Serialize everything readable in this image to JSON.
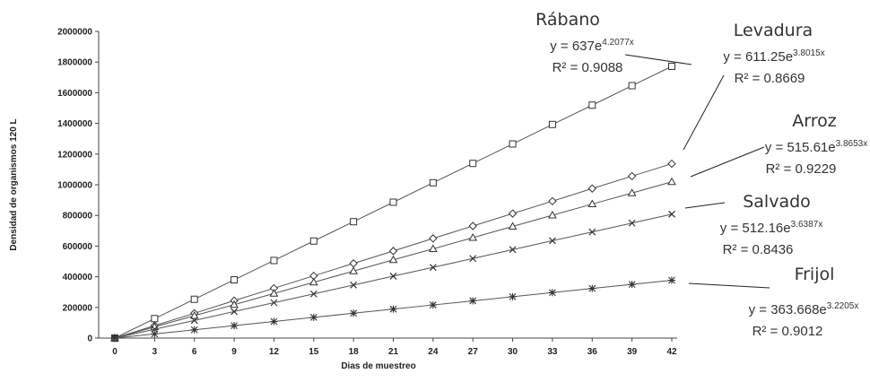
{
  "chart_data": {
    "type": "line",
    "title": "",
    "xlabel": "Dias de muestreo",
    "ylabel": "Densidad de organismos 120 L",
    "x": [
      0,
      3,
      6,
      9,
      12,
      15,
      18,
      21,
      24,
      27,
      30,
      33,
      36,
      39,
      42
    ],
    "xlim": [
      0,
      42
    ],
    "ylim": [
      0,
      2000000
    ],
    "yticks": [
      "0",
      "200000",
      "400000",
      "600000",
      "800000",
      "1000000",
      "1200000",
      "1400000",
      "1600000",
      "1800000",
      "2000000"
    ],
    "xticks": [
      "0",
      "3",
      "6",
      "9",
      "12",
      "15",
      "18",
      "21",
      "24",
      "27",
      "30",
      "33",
      "36",
      "39",
      "42"
    ],
    "grid": false,
    "legend": "none",
    "series": [
      {
        "name": "Rábano",
        "marker": "square",
        "values": [
          0,
          127000,
          253000,
          380000,
          506000,
          633000,
          759000,
          886000,
          1013000,
          1139000,
          1266000,
          1393000,
          1519000,
          1646000,
          1772000
        ],
        "equation": {
          "prefix": "y = 637e",
          "exponent": "4.2077x"
        },
        "r2": "R² = 0.9088"
      },
      {
        "name": "Levadura",
        "marker": "diamond",
        "values": [
          0,
          81000,
          162000,
          244000,
          325000,
          406000,
          487000,
          568000,
          650000,
          731000,
          812000,
          893000,
          975000,
          1056000,
          1137000
        ],
        "equation": {
          "prefix": "y = 611.25e",
          "exponent": "3.8015x"
        },
        "r2": "R² = 0.8669"
      },
      {
        "name": "Arroz",
        "marker": "triangle",
        "values": [
          0,
          73000,
          146000,
          218000,
          291000,
          364000,
          437000,
          510000,
          582000,
          655000,
          728000,
          801000,
          874000,
          946000,
          1019000
        ],
        "equation": {
          "prefix": "y = 515.61e",
          "exponent": "3.8653x"
        },
        "r2": "R² = 0.9229"
      },
      {
        "name": "Salvado",
        "marker": "x",
        "values": [
          0,
          58000,
          115000,
          173000,
          231000,
          288000,
          346000,
          404000,
          461000,
          519000,
          577000,
          635000,
          692000,
          750000,
          808000
        ],
        "equation": {
          "prefix": "y = 512.16e",
          "exponent": "3.6387x"
        },
        "r2": "R² = 0.8436"
      },
      {
        "name": "Frijol",
        "marker": "star",
        "values": [
          0,
          27000,
          54000,
          81000,
          108000,
          135000,
          162000,
          189000,
          216000,
          243000,
          270000,
          297000,
          324000,
          350000,
          377000
        ],
        "equation": {
          "prefix": "y = 363.668e",
          "exponent": "3.2205x"
        },
        "r2": "R² = 0.9012"
      }
    ]
  }
}
